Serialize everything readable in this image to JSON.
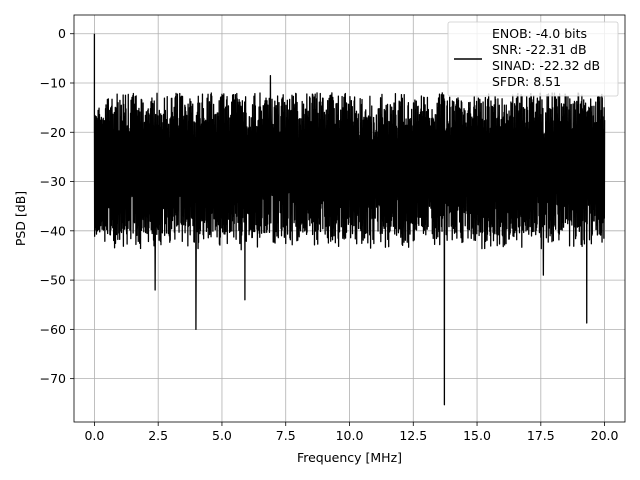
{
  "chart_data": {
    "type": "line",
    "title": "",
    "xlabel": "Frequency [MHz]",
    "ylabel": "PSD [dB]",
    "xlim": [
      -0.8,
      20.8
    ],
    "ylim": [
      -78.8,
      3.8
    ],
    "xticks": [
      0.0,
      2.5,
      5.0,
      7.5,
      10.0,
      12.5,
      15.0,
      17.5,
      20.0
    ],
    "xtick_labels": [
      "0.0",
      "2.5",
      "5.0",
      "7.5",
      "10.0",
      "12.5",
      "15.0",
      "17.5",
      "20.0"
    ],
    "yticks": [
      0,
      -10,
      -20,
      -30,
      -40,
      -50,
      -60,
      -70
    ],
    "ytick_labels": [
      "0",
      "−10",
      "−20",
      "−30",
      "−40",
      "−50",
      "−60",
      "−70"
    ],
    "grid": true,
    "legend_position": "top-right",
    "legend_entries": [
      "ENOB: -4.0 bits",
      "SNR: -22.31 dB",
      "SINAD: -22.32 dB",
      "SFDR: 8.51"
    ],
    "line_color": "#000000",
    "series": [
      {
        "noise_floor_range_db": [
          -40,
          -12
        ],
        "peak_points": [
          {
            "x": 0.0,
            "y": 0.0
          },
          {
            "x": 2.38,
            "y": -52
          },
          {
            "x": 3.98,
            "y": -60
          },
          {
            "x": 5.9,
            "y": -54
          },
          {
            "x": 6.9,
            "y": -8.5
          },
          {
            "x": 13.72,
            "y": -75.3
          },
          {
            "x": 17.6,
            "y": -49
          },
          {
            "x": 19.3,
            "y": -58.7
          }
        ]
      }
    ]
  }
}
